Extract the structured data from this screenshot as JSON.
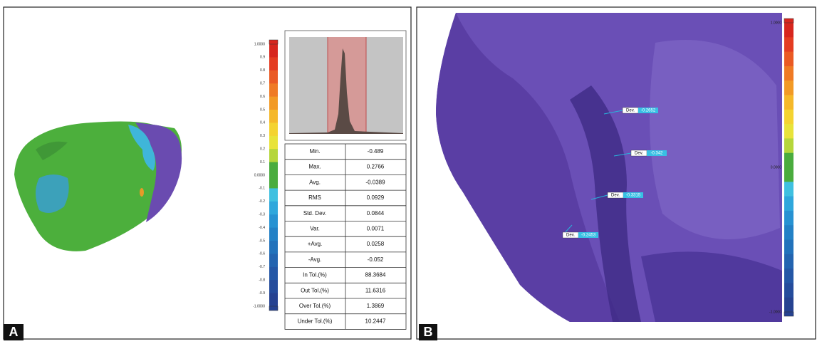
{
  "panel_a": {
    "letter": "A",
    "scale_labels": [
      "1.0000",
      "0.9",
      "0.8",
      "0.7",
      "0.6",
      "0.5",
      "0.4",
      "0.3",
      "0.2",
      "0.1",
      "0.0000",
      "-0.1",
      "-0.2",
      "-0.3",
      "-0.4",
      "-0.5",
      "-0.6",
      "-0.7",
      "-0.8",
      "-0.9",
      "-1.0000"
    ],
    "table": {
      "rows": [
        [
          "Min.",
          "-0.489"
        ],
        [
          "Max.",
          "0.2766"
        ],
        [
          "Avg.",
          "-0.0389"
        ],
        [
          "RMS",
          "0.0929"
        ],
        [
          "Std. Dev.",
          "0.0844"
        ],
        [
          "Var.",
          "0.0071"
        ],
        [
          "+Avg.",
          "0.0258"
        ],
        [
          "-Avg.",
          "-0.052"
        ],
        [
          "In Tol.(%)",
          "88.3684"
        ],
        [
          "Out Tol.(%)",
          "11.6316"
        ],
        [
          "Over Tol.(%)",
          "1.3869"
        ],
        [
          "Under Tol.(%)",
          "10.2447"
        ]
      ]
    }
  },
  "panel_b": {
    "letter": "B",
    "scale_labels": [
      "1.0000",
      "0.0000",
      "-1.0000"
    ],
    "annotations": [
      {
        "label": "Dev.",
        "value": "-0.2652"
      },
      {
        "label": "Dev.",
        "value": "-0.342"
      },
      {
        "label": "Dev.",
        "value": "-0.3315"
      },
      {
        "label": "Dev.",
        "value": "-0.2453"
      }
    ]
  }
}
